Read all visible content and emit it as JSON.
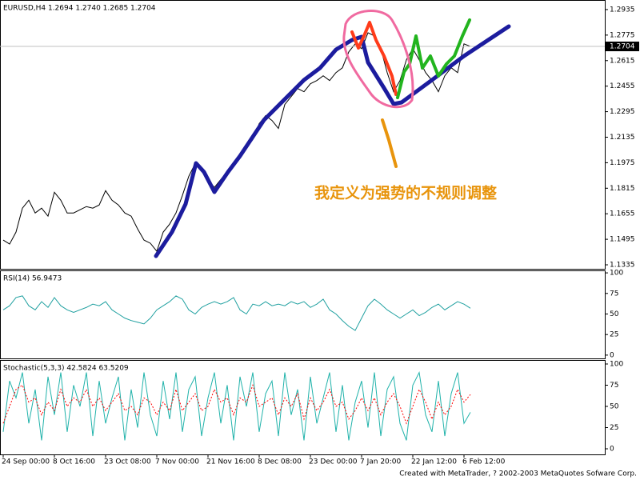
{
  "chart_data": [
    {
      "type": "line",
      "title": "EURUSD,H4  1.2694 1.2740 1.2685 1.2704",
      "categories": [
        "24 Sep 00:00",
        null,
        null,
        null,
        null,
        null,
        null,
        null,
        "8 Oct 16:00",
        null,
        null,
        null,
        null,
        null,
        null,
        null,
        "23 Oct 08:00",
        null,
        null,
        null,
        null,
        null,
        null,
        null,
        "7 Nov 00:00",
        null,
        null,
        null,
        null,
        null,
        null,
        null,
        "21 Nov 16:00",
        null,
        null,
        null,
        null,
        null,
        null,
        null,
        "8 Dec 08:00",
        null,
        null,
        null,
        null,
        null,
        null,
        null,
        "23 Dec 00:00",
        null,
        null,
        null,
        null,
        null,
        null,
        null,
        "7 Jan 20:00",
        null,
        null,
        null,
        null,
        null,
        null,
        null,
        "22 Jan 12:00",
        null,
        null,
        null,
        null,
        null,
        null,
        null,
        "6 Feb 12:00",
        null
      ],
      "series": [
        {
          "color": "#000000",
          "values": [
            1.149,
            1.1465,
            1.154,
            1.169,
            1.174,
            1.166,
            1.169,
            1.164,
            1.179,
            1.174,
            1.166,
            1.166,
            1.168,
            1.17,
            1.169,
            1.171,
            1.18,
            1.174,
            1.171,
            1.166,
            1.164,
            1.156,
            1.149,
            1.147,
            1.142,
            1.154,
            1.159,
            1.166,
            1.177,
            1.189,
            1.197,
            1.192,
            1.187,
            1.182,
            1.187,
            1.192,
            1.197,
            1.202,
            1.207,
            1.212,
            1.222,
            1.227,
            1.224,
            1.219,
            1.234,
            1.239,
            1.244,
            1.242,
            1.247,
            1.249,
            1.252,
            1.249,
            1.254,
            1.257,
            1.267,
            1.272,
            1.269,
            1.279,
            1.277,
            1.269,
            1.254,
            1.242,
            1.249,
            1.262,
            1.269,
            1.262,
            1.254,
            1.249,
            1.242,
            1.252,
            1.257,
            1.254,
            1.272,
            1.2704
          ]
        }
      ],
      "ylim": [
        1.131,
        1.2995
      ],
      "yticks": [
        1.2935,
        1.2775,
        1.2615,
        1.2455,
        1.2295,
        1.2135,
        1.1975,
        1.1815,
        1.1655,
        1.1495,
        1.1335
      ],
      "current_price": 1.2704,
      "annotation": "我定义为强势的不规则调整"
    },
    {
      "type": "line",
      "title": "RSI(14)  56.9473",
      "series": [
        {
          "color": "#20a0a0",
          "values": [
            55,
            60,
            70,
            72,
            60,
            55,
            65,
            58,
            70,
            60,
            55,
            52,
            55,
            58,
            62,
            60,
            65,
            55,
            50,
            45,
            42,
            40,
            38,
            45,
            55,
            60,
            65,
            72,
            68,
            55,
            50,
            58,
            62,
            65,
            62,
            65,
            70,
            55,
            50,
            62,
            60,
            65,
            60,
            62,
            60,
            65,
            62,
            65,
            58,
            62,
            68,
            55,
            50,
            42,
            35,
            30,
            45,
            60,
            68,
            62,
            55,
            50,
            45,
            50,
            55,
            48,
            52,
            58,
            62,
            55,
            60,
            65,
            62,
            57
          ]
        }
      ],
      "ylim": [
        -4,
        103
      ],
      "yticks": [
        100,
        75,
        50,
        25,
        0
      ]
    },
    {
      "type": "line",
      "title": "Stochastic(5,3,3)  42.5824  63.5209",
      "series": [
        {
          "color": "#20b2aa",
          "values": [
            20,
            80,
            60,
            90,
            30,
            70,
            10,
            85,
            40,
            90,
            20,
            75,
            50,
            90,
            15,
            80,
            30,
            60,
            85,
            10,
            70,
            25,
            90,
            40,
            15,
            80,
            35,
            90,
            20,
            70,
            85,
            15,
            60,
            90,
            30,
            75,
            10,
            85,
            50,
            90,
            20,
            65,
            80,
            15,
            90,
            40,
            70,
            10,
            85,
            30,
            60,
            90,
            20,
            75,
            10,
            55,
            80,
            25,
            90,
            15,
            70,
            85,
            30,
            10,
            75,
            90,
            40,
            20,
            80,
            15,
            65,
            90,
            30,
            43
          ]
        },
        {
          "color": "#ff0000",
          "dashed": true,
          "values": [
            30,
            50,
            70,
            75,
            55,
            60,
            40,
            55,
            45,
            70,
            50,
            60,
            55,
            70,
            50,
            60,
            45,
            55,
            65,
            45,
            50,
            40,
            60,
            55,
            40,
            55,
            45,
            70,
            45,
            55,
            65,
            45,
            50,
            70,
            55,
            60,
            40,
            60,
            55,
            75,
            50,
            55,
            60,
            40,
            60,
            50,
            65,
            35,
            60,
            45,
            55,
            70,
            50,
            55,
            35,
            45,
            60,
            45,
            60,
            40,
            55,
            65,
            50,
            30,
            50,
            70,
            55,
            35,
            55,
            40,
            50,
            70,
            55,
            64
          ]
        }
      ],
      "ylim": [
        -6.6,
        104.7
      ],
      "yticks": [
        100,
        75,
        50,
        25,
        0
      ]
    }
  ],
  "footer": "Created with MetaTrader, ? 2002-2003 MetaQuotes Sofware Corp."
}
